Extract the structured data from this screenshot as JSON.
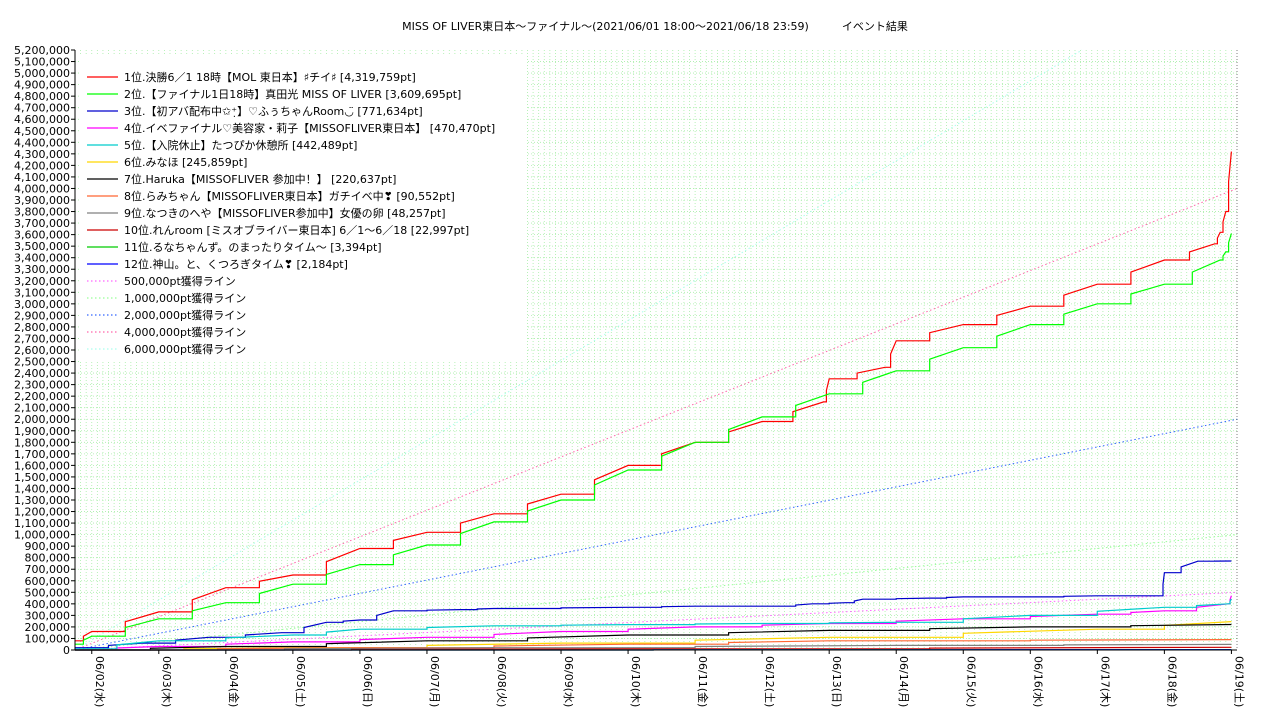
{
  "chart_data": {
    "type": "line",
    "title": "MISS OF LIVER東日本〜ファイナル〜(2021/06/01 18:00〜2021/06/18 23:59)　　　イベント結果",
    "xlabel": "",
    "ylabel": "",
    "ylim": [
      0,
      5200000
    ],
    "ytick_step": 100000,
    "xlim": [
      "2021-06-01 18:00",
      "2021-06-19 02:00"
    ],
    "x_ticks": [
      "06/02(水)",
      "06/03(木)",
      "06/04(金)",
      "06/05(土)",
      "06/06(日)",
      "06/07(月)",
      "06/08(火)",
      "06/09(水)",
      "06/10(木)",
      "06/11(金)",
      "06/12(土)",
      "06/13(日)",
      "06/14(月)",
      "06/15(火)",
      "06/16(水)",
      "06/17(木)",
      "06/18(金)",
      "06/19(土)"
    ],
    "grid": true,
    "legend_position": "top-left",
    "series": [
      {
        "name": "1位.決勝6／1 18時【MOL 東日本】♯チイ♯ [4,319,759pt]",
        "color": "#ff0000",
        "x": [
          "2021-06-01 18:00",
          "2021-06-02 00:00",
          "2021-06-03 00:00",
          "2021-06-04 00:00",
          "2021-06-05 00:00",
          "2021-06-06 00:00",
          "2021-06-07 00:00",
          "2021-06-08 00:00",
          "2021-06-09 00:00",
          "2021-06-10 00:00",
          "2021-06-11 00:00",
          "2021-06-12 00:00",
          "2021-06-12 22:00",
          "2021-06-13 00:00",
          "2021-06-13 20:00",
          "2021-06-14 00:00",
          "2021-06-15 00:00",
          "2021-06-16 00:00",
          "2021-06-17 00:00",
          "2021-06-18 00:00",
          "2021-06-18 18:00",
          "2021-06-18 20:00",
          "2021-06-18 22:00",
          "2021-06-18 23:59"
        ],
        "values": [
          80000,
          160000,
          330000,
          540000,
          650000,
          880000,
          1020000,
          1180000,
          1350000,
          1600000,
          1800000,
          1980000,
          2150000,
          2350000,
          2450000,
          2680000,
          2820000,
          2980000,
          3170000,
          3380000,
          3520000,
          3620000,
          3800000,
          4319759
        ]
      },
      {
        "name": "2位.【ファイナル1日18時】真田光 MISS OF LIVER [3,609,695pt]",
        "color": "#00ff00",
        "x": [
          "2021-06-01 18:00",
          "2021-06-02 00:00",
          "2021-06-03 00:00",
          "2021-06-04 00:00",
          "2021-06-05 00:00",
          "2021-06-06 00:00",
          "2021-06-07 00:00",
          "2021-06-08 00:00",
          "2021-06-09 00:00",
          "2021-06-10 00:00",
          "2021-06-11 00:00",
          "2021-06-12 00:00",
          "2021-06-13 00:00",
          "2021-06-14 00:00",
          "2021-06-15 00:00",
          "2021-06-16 00:00",
          "2021-06-17 00:00",
          "2021-06-18 00:00",
          "2021-06-18 20:00",
          "2021-06-18 22:00",
          "2021-06-18 23:59"
        ],
        "values": [
          50000,
          120000,
          270000,
          410000,
          570000,
          740000,
          910000,
          1110000,
          1300000,
          1560000,
          1800000,
          2020000,
          2220000,
          2420000,
          2620000,
          2820000,
          3000000,
          3170000,
          3380000,
          3450000,
          3609695
        ]
      },
      {
        "name": "3位.【初アバ配布中✩⁺̣】♡ふぅちゃんRoom◡̈ [771,634pt]",
        "color": "#0000cc",
        "x": [
          "2021-06-01 18:00",
          "2021-06-02 18:00",
          "2021-06-03 18:00",
          "2021-06-04 20:00",
          "2021-06-05 12:00",
          "2021-06-06 00:00",
          "2021-06-06 12:00",
          "2021-06-07 12:00",
          "2021-06-08 00:00",
          "2021-06-10 00:00",
          "2021-06-11 00:00",
          "2021-06-12 06:00",
          "2021-06-12 18:00",
          "2021-06-13 06:00",
          "2021-06-13 12:00",
          "2021-06-14 12:00",
          "2021-06-15 00:00",
          "2021-06-16 00:00",
          "2021-06-17 00:00",
          "2021-06-17 23:00",
          "2021-06-18 00:00",
          "2021-06-18 12:00",
          "2021-06-18 23:59"
        ],
        "values": [
          20000,
          60000,
          110000,
          150000,
          240000,
          260000,
          340000,
          350000,
          360000,
          370000,
          380000,
          380000,
          400000,
          410000,
          440000,
          450000,
          460000,
          460000,
          470000,
          470000,
          670000,
          770000,
          771634
        ]
      },
      {
        "name": "4位.イベファイナル♡美容家・莉子【MISSOFLIVER東日本】 [470,470pt]",
        "color": "#ff00ff",
        "x": [
          "2021-06-01 18:00",
          "2021-06-03 00:00",
          "2021-06-05 00:00",
          "2021-06-07 00:00",
          "2021-06-09 00:00",
          "2021-06-11 00:00",
          "2021-06-13 00:00",
          "2021-06-15 00:00",
          "2021-06-17 00:00",
          "2021-06-18 00:00",
          "2021-06-18 23:00",
          "2021-06-18 23:59"
        ],
        "values": [
          5000,
          30000,
          70000,
          110000,
          160000,
          200000,
          230000,
          270000,
          310000,
          340000,
          400000,
          470470
        ]
      },
      {
        "name": "5位.【入院休止】たつぴか休憩所 [442,489pt]",
        "color": "#00cccc",
        "x": [
          "2021-06-01 18:00",
          "2021-06-03 00:00",
          "2021-06-05 00:00",
          "2021-06-06 00:00",
          "2021-06-08 00:00",
          "2021-06-10 00:00",
          "2021-06-12 00:00",
          "2021-06-14 00:00",
          "2021-06-16 00:00",
          "2021-06-18 00:00",
          "2021-06-18 23:00",
          "2021-06-18 23:59"
        ],
        "values": [
          10000,
          80000,
          130000,
          180000,
          210000,
          220000,
          230000,
          240000,
          300000,
          370000,
          400000,
          442489
        ]
      },
      {
        "name": "6位.みなほ [245,859pt]",
        "color": "#ffd700",
        "x": [
          "2021-06-01 18:00",
          "2021-06-05 00:00",
          "2021-06-09 00:00",
          "2021-06-13 00:00",
          "2021-06-17 00:00",
          "2021-06-18 23:59"
        ],
        "values": [
          0,
          20000,
          60000,
          110000,
          180000,
          245859
        ]
      },
      {
        "name": "7位.Haruka【MISSOFLIVER 参加中！】 [220,637pt]",
        "color": "#000000",
        "x": [
          "2021-06-01 18:00",
          "2021-06-04 00:00",
          "2021-06-07 00:00",
          "2021-06-10 00:00",
          "2021-06-13 00:00",
          "2021-06-16 00:00",
          "2021-06-18 23:59"
        ],
        "values": [
          0,
          30000,
          80000,
          130000,
          170000,
          200000,
          220637
        ]
      },
      {
        "name": "8位.らみちゃん【MISSOFLIVER東日本】ガチイベ中❣ [90,552pt]",
        "color": "#ff6633",
        "x": [
          "2021-06-01 18:00",
          "2021-06-06 00:00",
          "2021-06-10 00:00",
          "2021-06-13 00:00",
          "2021-06-18 23:59"
        ],
        "values": [
          0,
          20000,
          50000,
          80000,
          90552
        ]
      },
      {
        "name": "9位.なつきのへや【MISSOFLIVER参加中】女優の卵 [48,257pt]",
        "color": "#808080",
        "x": [
          "2021-06-01 18:00",
          "2021-06-08 00:00",
          "2021-06-14 00:00",
          "2021-06-18 23:59"
        ],
        "values": [
          0,
          20000,
          40000,
          48257
        ]
      },
      {
        "name": "10位.れんroom [ミスオブライバー東日本] 6／1〜6／18 [22,997pt]",
        "color": "#cc0000",
        "x": [
          "2021-06-01 18:00",
          "2021-06-10 00:00",
          "2021-06-18 23:59"
        ],
        "values": [
          0,
          10000,
          22997
        ]
      },
      {
        "name": "11位.るなちゃんず。のまったりタイム〜 [3,394pt]",
        "color": "#00cc00",
        "x": [
          "2021-06-01 18:00",
          "2021-06-18 23:59"
        ],
        "values": [
          0,
          3394
        ]
      },
      {
        "name": "12位.神山。と、くつろぎタイム❣ [2,184pt]",
        "color": "#0000ff",
        "x": [
          "2021-06-01 18:00",
          "2021-06-18 23:59"
        ],
        "values": [
          0,
          2184
        ]
      }
    ],
    "reference_lines": [
      {
        "name": "500,000pt獲得ライン",
        "color": "#ff66ff",
        "target": 500000
      },
      {
        "name": "1,000,000pt獲得ライン",
        "color": "#99ff99",
        "target": 1000000
      },
      {
        "name": "2,000,000pt獲得ライン",
        "color": "#3366ff",
        "target": 2000000
      },
      {
        "name": "4,000,000pt獲得ライン",
        "color": "#ff66aa",
        "target": 4000000
      },
      {
        "name": "6,000,000pt獲得ライン",
        "color": "#aaffee",
        "target": 6000000
      }
    ]
  }
}
